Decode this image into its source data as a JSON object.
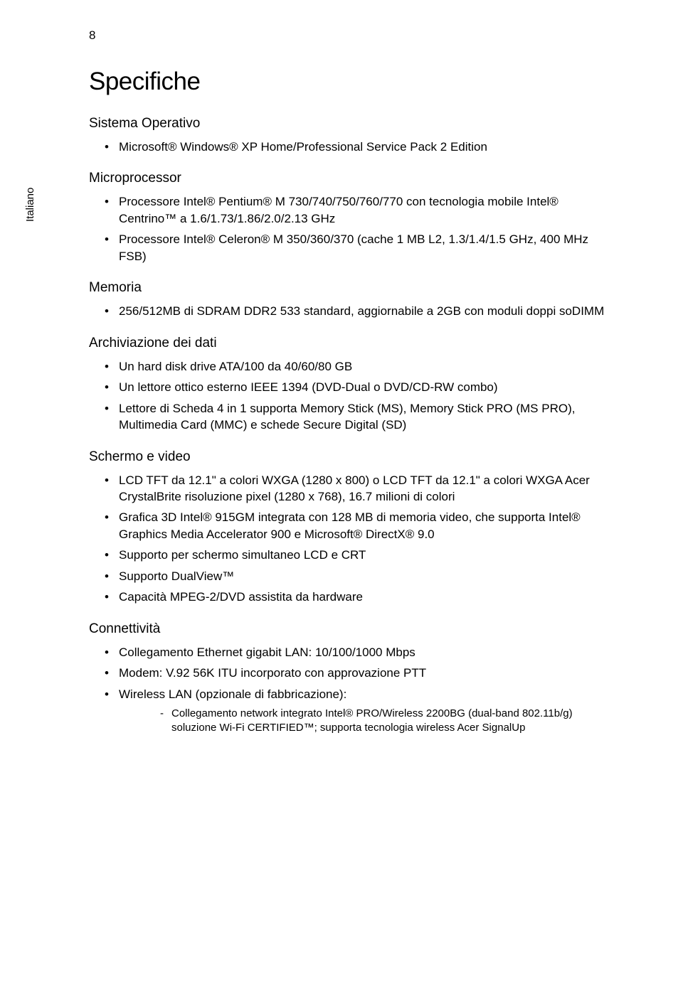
{
  "page_number": "8",
  "sidebar_label": "Italiano",
  "title": "Specifiche",
  "sections": [
    {
      "heading": "Sistema Operativo",
      "items": [
        {
          "text": "Microsoft® Windows® XP Home/Professional Service Pack 2 Edition"
        }
      ]
    },
    {
      "heading": "Microprocessor",
      "items": [
        {
          "text": "Processore Intel® Pentium® M 730/740/750/760/770 con tecnologia mobile Intel® Centrino™ a 1.6/1.73/1.86/2.0/2.13 GHz"
        },
        {
          "text": "Processore Intel® Celeron® M 350/360/370 (cache 1 MB L2, 1.3/1.4/1.5 GHz, 400 MHz FSB)"
        }
      ]
    },
    {
      "heading": "Memoria",
      "items": [
        {
          "text": "256/512MB di SDRAM DDR2 533 standard, aggiornabile a 2GB con moduli doppi soDIMM"
        }
      ]
    },
    {
      "heading": "Archiviazione dei dati",
      "items": [
        {
          "text": "Un hard disk drive ATA/100 da 40/60/80 GB"
        },
        {
          "text": "Un lettore ottico esterno IEEE 1394 (DVD-Dual o DVD/CD-RW combo)"
        },
        {
          "text": "Lettore di Scheda 4 in 1 supporta Memory Stick (MS), Memory Stick PRO (MS PRO), Multimedia Card (MMC) e schede Secure Digital (SD)"
        }
      ]
    },
    {
      "heading": "Schermo e video",
      "items": [
        {
          "text": "LCD TFT da 12.1\" a colori WXGA (1280 x 800) o LCD TFT da 12.1\" a colori WXGA Acer CrystalBrite risoluzione pixel (1280 x 768), 16.7 milioni di colori"
        },
        {
          "text": "Grafica 3D Intel® 915GM integrata con 128 MB di memoria video, che supporta Intel® Graphics Media Accelerator 900 e Microsoft® DirectX® 9.0"
        },
        {
          "text": "Supporto per schermo simultaneo LCD e CRT"
        },
        {
          "text": "Supporto DualView™"
        },
        {
          "text": "Capacità MPEG-2/DVD assistita da hardware"
        }
      ]
    },
    {
      "heading": "Connettività",
      "items": [
        {
          "text": "Collegamento Ethernet gigabit LAN: 10/100/1000 Mbps"
        },
        {
          "text": "Modem: V.92 56K ITU incorporato con approvazione PTT"
        },
        {
          "text": "Wireless LAN (opzionale di fabbricazione):",
          "sub": [
            {
              "text": "Collegamento network integrato Intel® PRO/Wireless 2200BG (dual-band 802.11b/g) soluzione Wi-Fi CERTIFIED™; supporta tecnologia wireless Acer SignalUp"
            }
          ]
        }
      ]
    }
  ]
}
